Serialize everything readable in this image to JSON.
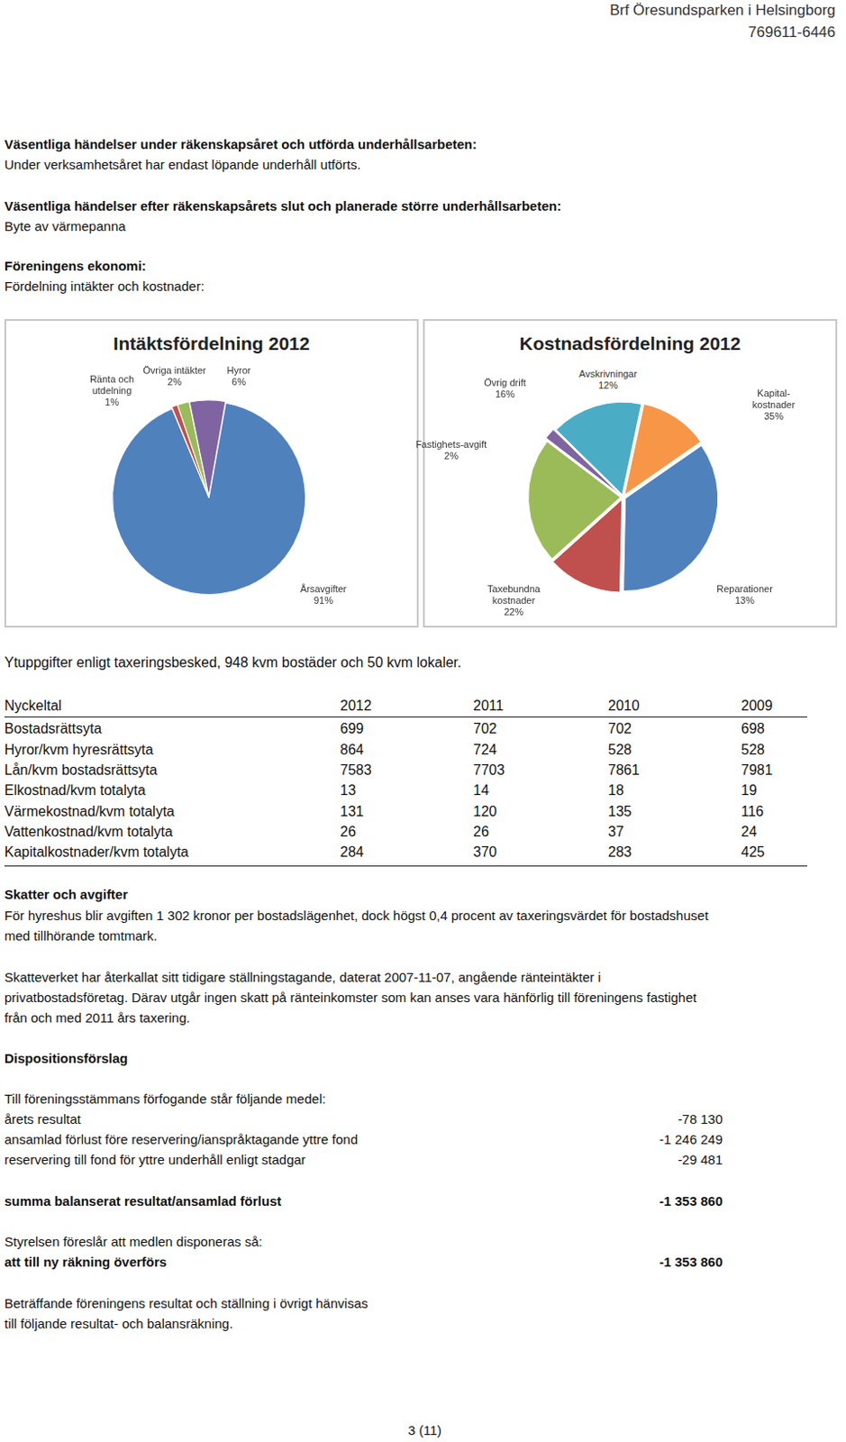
{
  "header": {
    "title": "Brf Öresundsparken i Helsingborg",
    "org_number": "769611-6446"
  },
  "sections": [
    {
      "heading": "Väsentliga händelser under räkenskapsåret och utförda underhållsarbeten:",
      "lines": [
        "Under verksamhetsåret har endast löpande underhåll utförts."
      ]
    },
    {
      "heading": "Väsentliga händelser efter räkenskapsårets slut och planerade större underhållsarbeten:",
      "lines": [
        "Byte av värmepanna"
      ]
    },
    {
      "heading": "Föreningens ekonomi:",
      "lines": [
        "Fördelning intäkter och kostnader:"
      ]
    }
  ],
  "chart_data": [
    {
      "type": "pie",
      "title": "Intäktsfördelning 2012",
      "categories": [
        "Årsavgifter",
        "Ränta och utdelning",
        "Övriga intäkter",
        "Hyror"
      ],
      "values": [
        91,
        1,
        2,
        6
      ],
      "value_labels": [
        "91%",
        "1%",
        "2%",
        "6%"
      ],
      "colors": [
        "#4f81bd",
        "#c0504d",
        "#9bbb59",
        "#8064a2"
      ],
      "data_labels": true,
      "legend": false
    },
    {
      "type": "pie",
      "title": "Kostnadsfördelning 2012",
      "categories": [
        "Avskrivningar",
        "Kapital-kostnader",
        "Reparationer",
        "Taxebundna kostnader",
        "Fastighets-avgift",
        "Övrig drift"
      ],
      "values": [
        12,
        35,
        13,
        22,
        2,
        16
      ],
      "value_labels": [
        "12%",
        "35%",
        "13%",
        "22%",
        "2%",
        "16%"
      ],
      "colors": [
        "#f79646",
        "#4f81bd",
        "#c0504d",
        "#9bbb59",
        "#8064a2",
        "#4bacc6"
      ],
      "data_labels": true,
      "legend": false
    }
  ],
  "area_note": "Ytuppgifter enligt taxeringsbesked, 948 kvm bostäder och 50 kvm lokaler.",
  "table": {
    "header": [
      "Nyckeltal",
      2012,
      2011,
      2010,
      2009
    ],
    "rows": [
      [
        "Bostadsrättsyta",
        699,
        702,
        702,
        698
      ],
      [
        "Hyror/kvm hyresrättsyta",
        864,
        724,
        528,
        528
      ],
      [
        "Lån/kvm bostadsrättsyta",
        7583,
        7703,
        7861,
        7981
      ],
      [
        "Elkostnad/kvm totalyta",
        13,
        14,
        18,
        19
      ],
      [
        "Värmekostnad/kvm totalyta",
        131,
        120,
        135,
        116
      ],
      [
        "Vattenkostnad/kvm totalyta",
        26,
        26,
        37,
        24
      ],
      [
        "Kapitalkostnader/kvm totalyta",
        284,
        370,
        283,
        425
      ]
    ]
  },
  "taxes": {
    "heading": "Skatter och avgifter",
    "paragraphs": [
      [
        "För hyreshus blir avgiften 1 302 kronor per bostadslägenhet, dock högst 0,4 procent av taxeringsvärdet för bostadshuset",
        "med tillhörande tomtmark."
      ],
      [
        "Skatteverket har återkallat sitt tidigare ställningstagande, daterat 2007-11-07, angående ränteintäkter i",
        "privatbostadsföretag. Därav utgår ingen skatt på ränteinkomster som kan anses vara hänförlig till föreningens fastighet",
        "från och med 2011 års taxering."
      ]
    ]
  },
  "disposition": {
    "heading": "Dispositionsförslag",
    "intro": "Till föreningsstämmans förfogande står följande medel:",
    "items": [
      {
        "label": "årets resultat",
        "amount": "-78 130"
      },
      {
        "label": "ansamlad förlust före reservering/ianspråktagande yttre fond",
        "amount": "-1 246 249"
      },
      {
        "label": "reservering till fond för yttre underhåll enligt stadgar",
        "amount": "-29 481"
      }
    ],
    "total": {
      "label": "summa balanserat resultat/ansamlad förlust",
      "amount": "-1 353 860"
    },
    "proposal": "Styrelsen föreslår att medlen disponeras så:",
    "transfer": {
      "label": "att till ny räkning överförs",
      "amount": "-1 353 860"
    },
    "closing": [
      "Beträffande föreningens resultat och ställning i övrigt hänvisas",
      "till följande resultat- och balansräkning."
    ]
  },
  "footer": {
    "page": "3 (11)"
  }
}
